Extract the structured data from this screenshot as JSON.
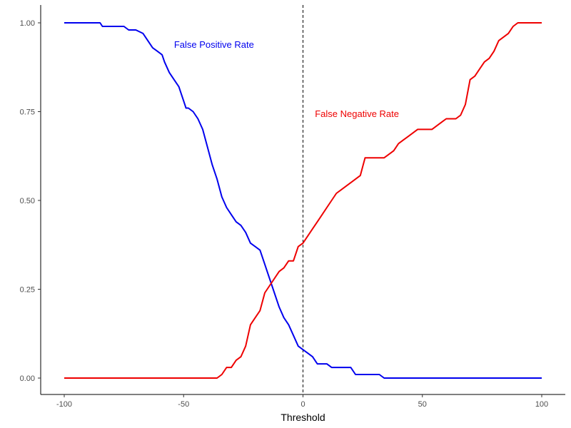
{
  "chart_data": {
    "type": "line",
    "xlabel": "Threshold",
    "ylabel": "",
    "xlim": [
      -105,
      105
    ],
    "ylim": [
      -0.04,
      1.05
    ],
    "x_ticks": [
      -100,
      -50,
      0,
      50,
      100
    ],
    "x_tick_labels": [
      "-100",
      "-50",
      "0",
      "50",
      "100"
    ],
    "y_ticks": [
      0,
      0.25,
      0.5,
      0.75,
      1.0
    ],
    "y_tick_labels": [
      "0.00",
      "0.25",
      "0.50",
      "0.75",
      "1.00"
    ],
    "grid": false,
    "vline": {
      "x": 0,
      "style": "dashed",
      "color": "#000000"
    },
    "series": [
      {
        "name": "False Positive Rate",
        "color": "#0000ee",
        "x": [
          -100,
          -85,
          -84,
          -80,
          -75,
          -73,
          -70,
          -67,
          -65,
          -63,
          -61,
          -59,
          -58,
          -56,
          -54,
          -52,
          -50,
          -49,
          -48,
          -46,
          -44,
          -42,
          -40,
          -38,
          -36,
          -34,
          -32,
          -30,
          -28,
          -26,
          -24,
          -22,
          -20,
          -18,
          -16,
          -14,
          -12,
          -10,
          -8,
          -6,
          -4,
          -2,
          0,
          2,
          4,
          6,
          8,
          10,
          12,
          14,
          16,
          18,
          20,
          22,
          24,
          26,
          28,
          30,
          32,
          34,
          36,
          40,
          50,
          60,
          70,
          80,
          90,
          100
        ],
        "y": [
          1.0,
          1.0,
          0.99,
          0.99,
          0.99,
          0.98,
          0.98,
          0.97,
          0.95,
          0.93,
          0.92,
          0.91,
          0.89,
          0.86,
          0.84,
          0.82,
          0.78,
          0.76,
          0.76,
          0.75,
          0.73,
          0.7,
          0.65,
          0.6,
          0.56,
          0.51,
          0.48,
          0.46,
          0.44,
          0.43,
          0.41,
          0.38,
          0.37,
          0.36,
          0.32,
          0.28,
          0.24,
          0.2,
          0.17,
          0.15,
          0.12,
          0.09,
          0.08,
          0.07,
          0.06,
          0.04,
          0.04,
          0.04,
          0.03,
          0.03,
          0.03,
          0.03,
          0.03,
          0.01,
          0.01,
          0.01,
          0.01,
          0.01,
          0.01,
          0.0,
          0.0,
          0.0,
          0.0,
          0.0,
          0.0,
          0.0,
          0.0,
          0.0
        ]
      },
      {
        "name": "False Negative Rate",
        "color": "#ee0000",
        "x": [
          -100,
          -90,
          -80,
          -70,
          -60,
          -50,
          -40,
          -36,
          -34,
          -32,
          -30,
          -28,
          -26,
          -24,
          -22,
          -20,
          -18,
          -16,
          -14,
          -12,
          -10,
          -8,
          -6,
          -4,
          -2,
          0,
          2,
          4,
          6,
          8,
          10,
          12,
          14,
          16,
          18,
          20,
          22,
          24,
          26,
          28,
          30,
          32,
          34,
          36,
          38,
          40,
          42,
          44,
          46,
          48,
          50,
          52,
          54,
          56,
          58,
          60,
          62,
          64,
          66,
          68,
          70,
          72,
          74,
          76,
          78,
          80,
          82,
          84,
          86,
          88,
          90,
          95,
          100
        ],
        "y": [
          0.0,
          0.0,
          0.0,
          0.0,
          0.0,
          0.0,
          0.0,
          0.0,
          0.01,
          0.03,
          0.03,
          0.05,
          0.06,
          0.09,
          0.15,
          0.17,
          0.19,
          0.24,
          0.26,
          0.28,
          0.3,
          0.31,
          0.33,
          0.33,
          0.37,
          0.38,
          0.4,
          0.42,
          0.44,
          0.46,
          0.48,
          0.5,
          0.52,
          0.53,
          0.54,
          0.55,
          0.56,
          0.57,
          0.62,
          0.62,
          0.62,
          0.62,
          0.62,
          0.63,
          0.64,
          0.66,
          0.67,
          0.68,
          0.69,
          0.7,
          0.7,
          0.7,
          0.7,
          0.71,
          0.72,
          0.73,
          0.73,
          0.73,
          0.74,
          0.77,
          0.84,
          0.85,
          0.87,
          0.89,
          0.9,
          0.92,
          0.95,
          0.96,
          0.97,
          0.99,
          1.0,
          1.0,
          1.0
        ]
      }
    ],
    "annotations": [
      {
        "text": "False Positive Rate",
        "x": -54,
        "y": 0.94,
        "color": "#0000ee"
      },
      {
        "text": "False Negative Rate",
        "x": 5,
        "y": 0.745,
        "color": "#ee0000"
      }
    ]
  }
}
